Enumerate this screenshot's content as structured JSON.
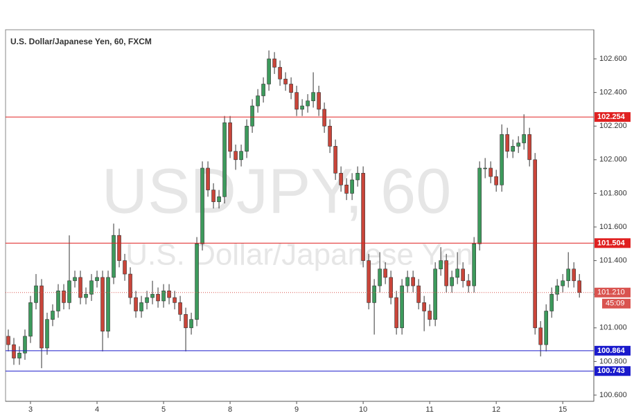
{
  "chart_data": {
    "type": "candlestick",
    "title": "U.S. Dollar/Japanese Yen, 60, FXCM",
    "watermark": "USDJPY, 60",
    "watermark_subtitle": "U.S. Dollar/Japanese Yen",
    "up_color": "#3d9a5c",
    "down_color": "#c9453a",
    "xlim": [
      -0.5,
      105.6
    ],
    "xticks": [
      {
        "value": 4,
        "label": "3"
      },
      {
        "value": 16,
        "label": "4"
      },
      {
        "value": 28,
        "label": "5"
      },
      {
        "value": 40,
        "label": "8"
      },
      {
        "value": 52,
        "label": "9"
      },
      {
        "value": 64,
        "label": "10"
      },
      {
        "value": 76,
        "label": "11"
      },
      {
        "value": 88,
        "label": "12"
      },
      {
        "value": 100,
        "label": "15"
      }
    ],
    "ylim": [
      100.563,
      102.773
    ],
    "yticks": [
      {
        "value": 100.6,
        "label": "100.600"
      },
      {
        "value": 100.8,
        "label": "100.800"
      },
      {
        "value": 101.0,
        "label": "101.000"
      },
      {
        "value": 101.2,
        "label": "101.200"
      },
      {
        "value": 101.4,
        "label": "101.400"
      },
      {
        "value": 101.6,
        "label": "101.600"
      },
      {
        "value": 101.8,
        "label": "101.800"
      },
      {
        "value": 102.0,
        "label": "102.000"
      },
      {
        "value": 102.2,
        "label": "102.200"
      },
      {
        "value": 102.4,
        "label": "102.400"
      },
      {
        "value": 102.6,
        "label": "102.600"
      }
    ],
    "levels": [
      {
        "value": 102.254,
        "color": "#e02020"
      },
      {
        "value": 101.504,
        "color": "#e02020"
      },
      {
        "value": 100.864,
        "color": "#1a1acc"
      },
      {
        "value": 100.743,
        "color": "#1a1acc"
      }
    ],
    "price_line": {
      "value": 101.21,
      "label": "101.210",
      "countdown": "45:09",
      "color": "#d9534f"
    },
    "ohlc": [
      [
        100.95,
        100.99,
        100.86,
        100.9
      ],
      [
        100.9,
        100.94,
        100.78,
        100.82
      ],
      [
        100.82,
        100.89,
        100.78,
        100.85
      ],
      [
        100.85,
        100.99,
        100.81,
        100.95
      ],
      [
        100.95,
        101.19,
        100.91,
        101.15
      ],
      [
        101.15,
        101.32,
        101.11,
        101.25
      ],
      [
        101.25,
        101.29,
        100.76,
        100.88
      ],
      [
        100.88,
        101.09,
        100.84,
        101.05
      ],
      [
        101.05,
        101.14,
        101.01,
        101.1
      ],
      [
        101.1,
        101.26,
        101.06,
        101.22
      ],
      [
        101.22,
        101.26,
        101.11,
        101.15
      ],
      [
        101.15,
        101.55,
        101.11,
        101.28
      ],
      [
        101.28,
        101.34,
        101.24,
        101.3
      ],
      [
        101.3,
        101.34,
        101.14,
        101.18
      ],
      [
        101.18,
        101.24,
        101.14,
        101.2
      ],
      [
        101.2,
        101.32,
        101.16,
        101.28
      ],
      [
        101.28,
        101.34,
        101.24,
        101.3
      ],
      [
        101.3,
        101.34,
        100.86,
        100.98
      ],
      [
        100.98,
        101.34,
        100.94,
        101.3
      ],
      [
        101.3,
        101.62,
        101.26,
        101.55
      ],
      [
        101.55,
        101.59,
        101.36,
        101.4
      ],
      [
        101.4,
        101.44,
        101.28,
        101.32
      ],
      [
        101.32,
        101.36,
        101.14,
        101.18
      ],
      [
        101.18,
        101.22,
        101.06,
        101.1
      ],
      [
        101.1,
        101.19,
        101.06,
        101.15
      ],
      [
        101.15,
        101.22,
        101.11,
        101.18
      ],
      [
        101.18,
        101.28,
        101.14,
        101.2
      ],
      [
        101.2,
        101.24,
        101.12,
        101.16
      ],
      [
        101.16,
        101.26,
        101.12,
        101.22
      ],
      [
        101.22,
        101.26,
        101.14,
        101.18
      ],
      [
        101.18,
        101.22,
        101.11,
        101.15
      ],
      [
        101.15,
        101.19,
        101.04,
        101.08
      ],
      [
        101.08,
        101.12,
        100.86,
        101.0
      ],
      [
        101.0,
        101.09,
        100.96,
        101.05
      ],
      [
        101.05,
        101.54,
        101.01,
        101.5
      ],
      [
        101.5,
        101.99,
        101.46,
        101.95
      ],
      [
        101.95,
        101.99,
        101.78,
        101.82
      ],
      [
        101.82,
        101.86,
        101.71,
        101.75
      ],
      [
        101.75,
        101.82,
        101.71,
        101.78
      ],
      [
        101.78,
        102.26,
        101.74,
        102.22
      ],
      [
        102.22,
        102.26,
        102.01,
        102.05
      ],
      [
        102.05,
        102.09,
        101.94,
        102.0
      ],
      [
        102.0,
        102.09,
        101.96,
        102.05
      ],
      [
        102.05,
        102.24,
        102.01,
        102.2
      ],
      [
        102.2,
        102.36,
        102.16,
        102.32
      ],
      [
        102.32,
        102.42,
        102.28,
        102.38
      ],
      [
        102.38,
        102.49,
        102.34,
        102.45
      ],
      [
        102.45,
        102.65,
        102.41,
        102.6
      ],
      [
        102.6,
        102.64,
        102.51,
        102.55
      ],
      [
        102.55,
        102.59,
        102.44,
        102.48
      ],
      [
        102.48,
        102.52,
        102.41,
        102.45
      ],
      [
        102.45,
        102.49,
        102.36,
        102.4
      ],
      [
        102.4,
        102.44,
        102.26,
        102.3
      ],
      [
        102.3,
        102.36,
        102.26,
        102.32
      ],
      [
        102.32,
        102.39,
        102.28,
        102.35
      ],
      [
        102.35,
        102.52,
        102.31,
        102.4
      ],
      [
        102.4,
        102.44,
        102.26,
        102.3
      ],
      [
        102.3,
        102.34,
        102.16,
        102.2
      ],
      [
        102.2,
        102.24,
        102.04,
        102.08
      ],
      [
        102.08,
        102.12,
        101.88,
        101.92
      ],
      [
        101.92,
        101.96,
        101.81,
        101.85
      ],
      [
        101.85,
        101.89,
        101.76,
        101.8
      ],
      [
        101.8,
        101.92,
        101.76,
        101.88
      ],
      [
        101.88,
        101.96,
        101.84,
        101.92
      ],
      [
        101.92,
        101.96,
        101.36,
        101.4
      ],
      [
        101.4,
        101.44,
        101.11,
        101.15
      ],
      [
        101.15,
        101.29,
        100.96,
        101.25
      ],
      [
        101.25,
        101.45,
        101.21,
        101.35
      ],
      [
        101.35,
        101.39,
        101.26,
        101.3
      ],
      [
        101.3,
        101.34,
        101.14,
        101.18
      ],
      [
        101.18,
        101.22,
        100.96,
        101.0
      ],
      [
        101.0,
        101.29,
        100.96,
        101.25
      ],
      [
        101.25,
        101.34,
        101.21,
        101.3
      ],
      [
        101.3,
        101.34,
        101.21,
        101.25
      ],
      [
        101.25,
        101.29,
        101.11,
        101.15
      ],
      [
        101.15,
        101.19,
        100.98,
        101.1
      ],
      [
        101.1,
        101.14,
        101.01,
        101.05
      ],
      [
        101.05,
        101.39,
        101.01,
        101.35
      ],
      [
        101.35,
        101.48,
        101.31,
        101.4
      ],
      [
        101.4,
        101.44,
        101.21,
        101.25
      ],
      [
        101.25,
        101.34,
        101.21,
        101.3
      ],
      [
        101.3,
        101.45,
        101.26,
        101.35
      ],
      [
        101.35,
        101.39,
        101.24,
        101.28
      ],
      [
        101.28,
        101.32,
        101.21,
        101.25
      ],
      [
        101.25,
        101.54,
        101.21,
        101.5
      ],
      [
        101.5,
        101.99,
        101.46,
        101.95
      ],
      [
        101.95,
        102.01,
        101.89,
        101.95
      ],
      [
        101.95,
        101.99,
        101.86,
        101.9
      ],
      [
        101.9,
        101.94,
        101.81,
        101.85
      ],
      [
        101.85,
        102.21,
        101.81,
        102.15
      ],
      [
        102.15,
        102.19,
        102.01,
        102.05
      ],
      [
        102.05,
        102.12,
        102.01,
        102.08
      ],
      [
        102.08,
        102.14,
        102.04,
        102.1
      ],
      [
        102.1,
        102.27,
        102.06,
        102.15
      ],
      [
        102.15,
        102.19,
        101.96,
        102.0
      ],
      [
        102.0,
        102.04,
        100.96,
        101.0
      ],
      [
        101.0,
        101.04,
        100.83,
        100.9
      ],
      [
        100.9,
        101.14,
        100.86,
        101.1
      ],
      [
        101.1,
        101.24,
        101.06,
        101.2
      ],
      [
        101.2,
        101.29,
        101.16,
        101.25
      ],
      [
        101.25,
        101.32,
        101.21,
        101.28
      ],
      [
        101.28,
        101.45,
        101.24,
        101.35
      ],
      [
        101.35,
        101.39,
        101.24,
        101.28
      ],
      [
        101.28,
        101.32,
        101.18,
        101.21
      ]
    ]
  }
}
